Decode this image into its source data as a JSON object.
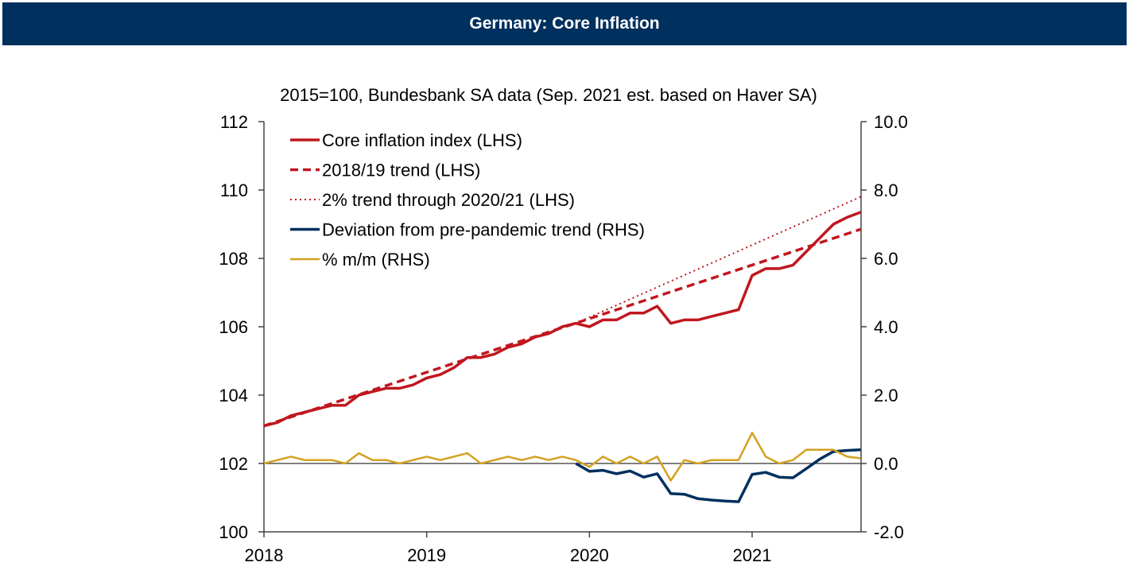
{
  "header": {
    "title": "Germany: Core Inflation"
  },
  "colors": {
    "header": "#00305e",
    "core": "#c0171f",
    "deviation": "#00305e",
    "mm": "#d4a020"
  },
  "chart_data": {
    "type": "line",
    "title": "Germany: Core Inflation",
    "subtitle": "2015=100, Bundesbank SA data (Sep. 2021 est. based on Haver SA)",
    "x_start": "2018-01",
    "x_ticks": [
      "2018",
      "2019",
      "2020",
      "2021"
    ],
    "ylim_left": [
      100,
      112
    ],
    "yticks_left": [
      "100",
      "102",
      "104",
      "106",
      "108",
      "110",
      "112"
    ],
    "ylim_right": [
      -2,
      10
    ],
    "yticks_right": [
      "-2.0",
      "0.0",
      "2.0",
      "4.0",
      "6.0",
      "8.0",
      "10.0"
    ],
    "legend_position": "top-left",
    "series": [
      {
        "name": "Core inflation index (LHS)",
        "axis": "left",
        "style": "solid",
        "start_index": 0,
        "values": [
          103.1,
          103.2,
          103.4,
          103.5,
          103.6,
          103.7,
          103.7,
          104.0,
          104.1,
          104.2,
          104.2,
          104.3,
          104.5,
          104.6,
          104.8,
          105.1,
          105.1,
          105.2,
          105.4,
          105.5,
          105.7,
          105.8,
          106.0,
          106.1,
          106.0,
          106.2,
          106.2,
          106.4,
          106.4,
          106.6,
          106.1,
          106.2,
          106.2,
          106.3,
          106.4,
          106.5,
          107.5,
          107.7,
          107.7,
          107.8,
          108.2,
          108.6,
          109.0,
          109.2,
          109.35
        ]
      },
      {
        "name": "2018/19 trend (LHS)",
        "axis": "left",
        "style": "dashed",
        "start_index": 0,
        "values": [
          103.1,
          108.85
        ],
        "linear_end_index": 44
      },
      {
        "name": "2% trend through 2020/21 (LHS)",
        "axis": "left",
        "style": "dotted",
        "start_index": 23,
        "values": [
          106.1,
          109.8
        ],
        "linear_end_index": 44
      },
      {
        "name": "Deviation from pre-pandemic trend (RHS)",
        "axis": "right",
        "style": "solid",
        "start_index": 23,
        "values": [
          0.0,
          -0.23,
          -0.2,
          -0.3,
          -0.22,
          -0.4,
          -0.3,
          -0.88,
          -0.9,
          -1.03,
          -1.07,
          -1.1,
          -1.12,
          -0.32,
          -0.26,
          -0.4,
          -0.42,
          -0.15,
          0.13,
          0.35,
          0.38,
          0.4
        ]
      },
      {
        "name": "% m/m (RHS)",
        "axis": "right",
        "style": "thin",
        "start_index": 0,
        "values": [
          0.0,
          0.1,
          0.2,
          0.1,
          0.1,
          0.1,
          0.0,
          0.3,
          0.1,
          0.1,
          0.0,
          0.1,
          0.2,
          0.1,
          0.2,
          0.3,
          0.0,
          0.1,
          0.2,
          0.1,
          0.2,
          0.1,
          0.2,
          0.1,
          -0.1,
          0.2,
          0.0,
          0.2,
          0.0,
          0.2,
          -0.5,
          0.1,
          0.0,
          0.1,
          0.1,
          0.1,
          0.9,
          0.2,
          0.0,
          0.1,
          0.4,
          0.4,
          0.4,
          0.2,
          0.15
        ]
      }
    ]
  }
}
